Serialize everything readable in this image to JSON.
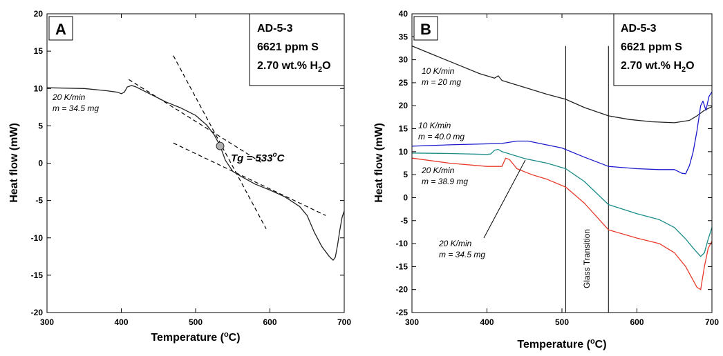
{
  "chart_data": [
    {
      "type": "line",
      "panel_label": "A",
      "xlabel": "Temperature (°C)",
      "ylabel": "Heat flow (mW)",
      "xlim": [
        300,
        700
      ],
      "ylim": [
        -20,
        20
      ],
      "xticks": [
        300,
        400,
        500,
        600,
        700
      ],
      "yticks": [
        -20,
        -15,
        -10,
        -5,
        0,
        5,
        10,
        15,
        20
      ],
      "grid": false,
      "legend": "none",
      "info_box": {
        "line1": "AD-5-3",
        "line2": "6621 ppm S",
        "line3_main": "2.70 wt.% H",
        "line3_sub": "2",
        "line3_end": "O"
      },
      "series": [
        {
          "label_line1": "20 K/min",
          "label_line2": "m = 34.5 mg",
          "color": "#222222",
          "x": [
            300,
            350,
            380,
            395,
            400,
            404,
            408,
            414,
            420,
            440,
            460,
            480,
            500,
            515,
            525,
            533,
            540,
            550,
            560,
            580,
            600,
            620,
            640,
            650,
            660,
            670,
            680,
            685,
            688,
            691,
            694,
            697,
            700
          ],
          "y": [
            10.1,
            10.0,
            9.7,
            9.5,
            9.3,
            9.5,
            10.2,
            10.4,
            10.2,
            9.2,
            8.2,
            7.4,
            6.4,
            5.1,
            3.8,
            2.3,
            0.4,
            -1.1,
            -1.7,
            -2.8,
            -3.6,
            -4.5,
            -5.8,
            -7.0,
            -9.3,
            -11.2,
            -12.5,
            -13.0,
            -12.6,
            -11.0,
            -9.0,
            -7.3,
            -6.4
          ]
        }
      ],
      "tangent_lines": [
        {
          "x": [
            410,
            590
          ],
          "y": [
            11.2,
            0.0
          ]
        },
        {
          "x": [
            470,
            595
          ],
          "y": [
            14.4,
            -8.8
          ]
        },
        {
          "x": [
            470,
            675
          ],
          "y": [
            2.7,
            -7.0
          ]
        }
      ],
      "tg_point": {
        "x": 533,
        "y": 2.3,
        "label_main": "Tg = 533",
        "label_sup": "o",
        "label_end": "C"
      }
    },
    {
      "type": "line",
      "panel_label": "B",
      "xlabel": "Temperature (°C)",
      "ylabel": "Heat flow (mW)",
      "xlim": [
        300,
        700
      ],
      "ylim": [
        -25,
        40
      ],
      "xticks": [
        300,
        400,
        500,
        600,
        700
      ],
      "yticks": [
        -25,
        -20,
        -15,
        -10,
        -5,
        0,
        5,
        10,
        15,
        20,
        25,
        30,
        35,
        40
      ],
      "grid": false,
      "legend": "none",
      "info_box": {
        "line1": "AD-5-3",
        "line2": "6621 ppm S",
        "line3_main": "2.70 wt.% H",
        "line3_sub": "2",
        "line3_end": "O"
      },
      "vertical_lines": [
        505,
        562
      ],
      "vertical_label": "Glass Transition",
      "series": [
        {
          "label_line1": "10 K/min",
          "label_line2": "m = 20 mg",
          "color": "#222222",
          "x": [
            300,
            330,
            360,
            390,
            410,
            415,
            420,
            450,
            480,
            505,
            530,
            562,
            590,
            620,
            650,
            670,
            680,
            690,
            700
          ],
          "y": [
            33.0,
            31.0,
            29.0,
            27.0,
            26.0,
            26.5,
            25.5,
            24.0,
            22.5,
            21.4,
            19.6,
            17.8,
            17.0,
            16.5,
            16.3,
            16.8,
            17.8,
            19.0,
            19.8
          ]
        },
        {
          "label_line1": "10 K/min",
          "label_line2": "m = 40.0 mg",
          "color": "#1a1acc",
          "x": [
            300,
            350,
            400,
            420,
            440,
            455,
            470,
            500,
            530,
            562,
            600,
            630,
            650,
            660,
            665,
            670,
            675,
            680,
            685,
            688,
            692,
            696,
            700
          ],
          "y": [
            11.2,
            11.5,
            11.7,
            11.8,
            12.3,
            12.3,
            11.8,
            10.8,
            8.8,
            6.8,
            6.3,
            6.1,
            6.1,
            5.3,
            5.2,
            7.0,
            10.0,
            14.5,
            20.0,
            21.0,
            19.0,
            22.0,
            23.0
          ]
        },
        {
          "label_line1": "20 K/min",
          "label_line2": "m = 38.9 mg",
          "color": "#1a8c88",
          "x": [
            300,
            350,
            400,
            405,
            410,
            415,
            420,
            450,
            480,
            505,
            530,
            562,
            600,
            630,
            650,
            665,
            675,
            685,
            690,
            695,
            700
          ],
          "y": [
            9.7,
            9.6,
            9.4,
            9.5,
            10.3,
            10.5,
            10.0,
            8.5,
            7.5,
            6.3,
            3.5,
            -1.5,
            -3.5,
            -4.8,
            -6.5,
            -9.0,
            -11.0,
            -12.8,
            -12.0,
            -9.0,
            -6.5
          ]
        },
        {
          "label_line1": "20 K/min",
          "label_line2": "m = 34.5 mg",
          "color": "#e83a2a",
          "x": [
            300,
            350,
            400,
            420,
            425,
            430,
            440,
            460,
            480,
            505,
            530,
            562,
            600,
            630,
            650,
            665,
            675,
            680,
            685,
            690,
            695,
            700
          ],
          "y": [
            8.6,
            7.5,
            6.8,
            6.8,
            8.6,
            8.3,
            6.3,
            5.0,
            4.0,
            2.3,
            -1.2,
            -7.0,
            -8.8,
            -10.0,
            -12.0,
            -15.0,
            -18.0,
            -19.5,
            -20.0,
            -15.0,
            -11.0,
            -9.5
          ]
        }
      ]
    }
  ]
}
